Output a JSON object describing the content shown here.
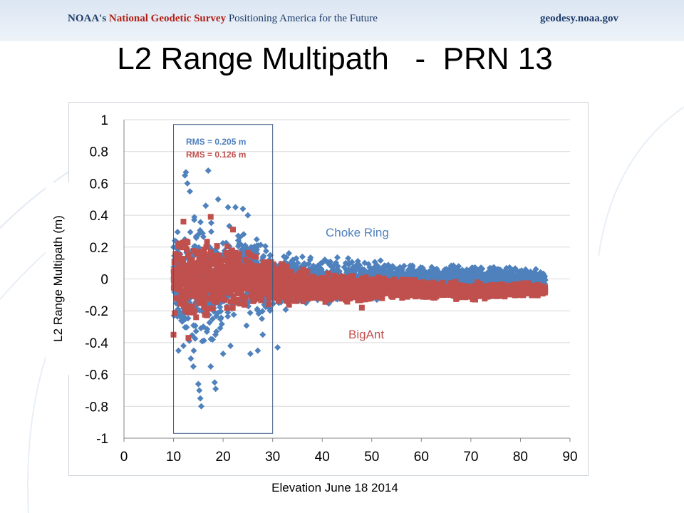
{
  "banner": {
    "agency": "NOAA's",
    "survey": "National Geodetic Survey",
    "tagline": "Positioning America for the Future",
    "site": "geodesy.noaa.gov"
  },
  "slide_title": "L2 Range Multipath   -  PRN 13",
  "chart_data": {
    "type": "scatter",
    "title": "",
    "xlabel": "Elevation  June 18 2014",
    "ylabel": "L2 Range Multipath (m)",
    "xlim": [
      0,
      90
    ],
    "ylim": [
      -1,
      1
    ],
    "x_ticks": [
      0,
      10,
      20,
      30,
      40,
      50,
      60,
      70,
      80,
      90
    ],
    "y_ticks": [
      1,
      0.8,
      0.6,
      0.4,
      0.2,
      0,
      -0.2,
      -0.4,
      -0.6,
      -0.8,
      -1
    ],
    "y_tick_labels": [
      "1",
      "0.8",
      "0.6",
      "0.4",
      "0.2",
      "0",
      "-0.2",
      "-0.4",
      "-0.6",
      "-0.8",
      "-1"
    ],
    "grid": "horizontal",
    "legend": "none",
    "annotations": [
      {
        "text": "RMS = 0.205 m",
        "color": "#4f81bd"
      },
      {
        "text": "RMS = 0.126 m",
        "color": "#c0504d"
      },
      {
        "text": "Choke Ring",
        "color": "#4f81bd"
      },
      {
        "text": "BigAnt",
        "color": "#c0504d"
      }
    ],
    "highlight_box": {
      "x": [
        10,
        30
      ],
      "y": [
        -0.97,
        0.97
      ]
    },
    "series": [
      {
        "color": "#4f81bd",
        "marker": "diamond",
        "envelope": [
          {
            "x": 10,
            "lo": -0.3,
            "hi": 0.3
          },
          {
            "x": 12,
            "lo": -0.45,
            "hi": 0.45
          },
          {
            "x": 14,
            "lo": -0.55,
            "hi": 0.48
          },
          {
            "x": 16,
            "lo": -0.5,
            "hi": 0.45
          },
          {
            "x": 18,
            "lo": -0.55,
            "hi": 0.42
          },
          {
            "x": 20,
            "lo": -0.4,
            "hi": 0.4
          },
          {
            "x": 22,
            "lo": -0.3,
            "hi": 0.4
          },
          {
            "x": 25,
            "lo": -0.3,
            "hi": 0.35
          },
          {
            "x": 28,
            "lo": -0.3,
            "hi": 0.3
          },
          {
            "x": 30,
            "lo": -0.28,
            "hi": 0.25
          },
          {
            "x": 35,
            "lo": -0.2,
            "hi": 0.18
          },
          {
            "x": 40,
            "lo": -0.18,
            "hi": 0.16
          },
          {
            "x": 45,
            "lo": -0.17,
            "hi": 0.15
          },
          {
            "x": 50,
            "lo": -0.15,
            "hi": 0.13
          },
          {
            "x": 55,
            "lo": -0.12,
            "hi": 0.12
          },
          {
            "x": 60,
            "lo": -0.1,
            "hi": 0.1
          },
          {
            "x": 70,
            "lo": -0.08,
            "hi": 0.1
          },
          {
            "x": 80,
            "lo": -0.07,
            "hi": 0.08
          },
          {
            "x": 85,
            "lo": -0.07,
            "hi": 0.07
          }
        ],
        "outliers": [
          {
            "x": 12.5,
            "y": 0.67
          },
          {
            "x": 12.3,
            "y": 0.65
          },
          {
            "x": 17,
            "y": 0.68
          },
          {
            "x": 12.8,
            "y": 0.6
          },
          {
            "x": 13.3,
            "y": 0.55
          },
          {
            "x": 16.5,
            "y": 0.46
          },
          {
            "x": 19,
            "y": 0.5
          },
          {
            "x": 21,
            "y": 0.45
          },
          {
            "x": 22.5,
            "y": 0.45
          },
          {
            "x": 24,
            "y": 0.44
          },
          {
            "x": 25,
            "y": 0.4
          },
          {
            "x": 15.6,
            "y": -0.8
          },
          {
            "x": 15.4,
            "y": -0.75
          },
          {
            "x": 15.2,
            "y": -0.7
          },
          {
            "x": 15,
            "y": -0.66
          },
          {
            "x": 18.5,
            "y": -0.69
          },
          {
            "x": 18.3,
            "y": -0.65
          },
          {
            "x": 14,
            "y": -0.55
          },
          {
            "x": 13.5,
            "y": -0.5
          },
          {
            "x": 17.5,
            "y": -0.55
          },
          {
            "x": 20,
            "y": -0.47
          },
          {
            "x": 21.5,
            "y": -0.42
          },
          {
            "x": 25.5,
            "y": -0.47
          },
          {
            "x": 27,
            "y": -0.45
          },
          {
            "x": 31,
            "y": -0.43
          },
          {
            "x": 11,
            "y": -0.45
          },
          {
            "x": 12,
            "y": -0.42
          },
          {
            "x": 28,
            "y": -0.35
          }
        ]
      },
      {
        "color": "#c0504d",
        "marker": "square",
        "envelope": [
          {
            "x": 10,
            "lo": -0.25,
            "hi": 0.25
          },
          {
            "x": 12,
            "lo": -0.3,
            "hi": 0.32
          },
          {
            "x": 15,
            "lo": -0.3,
            "hi": 0.3
          },
          {
            "x": 18,
            "lo": -0.28,
            "hi": 0.3
          },
          {
            "x": 20,
            "lo": -0.25,
            "hi": 0.25
          },
          {
            "x": 25,
            "lo": -0.22,
            "hi": 0.2
          },
          {
            "x": 30,
            "lo": -0.2,
            "hi": 0.15
          },
          {
            "x": 35,
            "lo": -0.16,
            "hi": 0.08
          },
          {
            "x": 40,
            "lo": -0.16,
            "hi": 0.05
          },
          {
            "x": 45,
            "lo": -0.17,
            "hi": 0.04
          },
          {
            "x": 50,
            "lo": -0.15,
            "hi": 0.03
          },
          {
            "x": 55,
            "lo": -0.13,
            "hi": 0.02
          },
          {
            "x": 60,
            "lo": -0.13,
            "hi": 0.0
          },
          {
            "x": 70,
            "lo": -0.14,
            "hi": -0.01
          },
          {
            "x": 80,
            "lo": -0.12,
            "hi": -0.02
          },
          {
            "x": 85,
            "lo": -0.11,
            "hi": -0.02
          }
        ],
        "outliers": [
          {
            "x": 12,
            "y": 0.36
          },
          {
            "x": 17.5,
            "y": 0.39
          },
          {
            "x": 22,
            "y": 0.31
          },
          {
            "x": 10,
            "y": -0.35
          },
          {
            "x": 13,
            "y": -0.37
          },
          {
            "x": 48,
            "y": -0.18
          }
        ]
      }
    ]
  }
}
